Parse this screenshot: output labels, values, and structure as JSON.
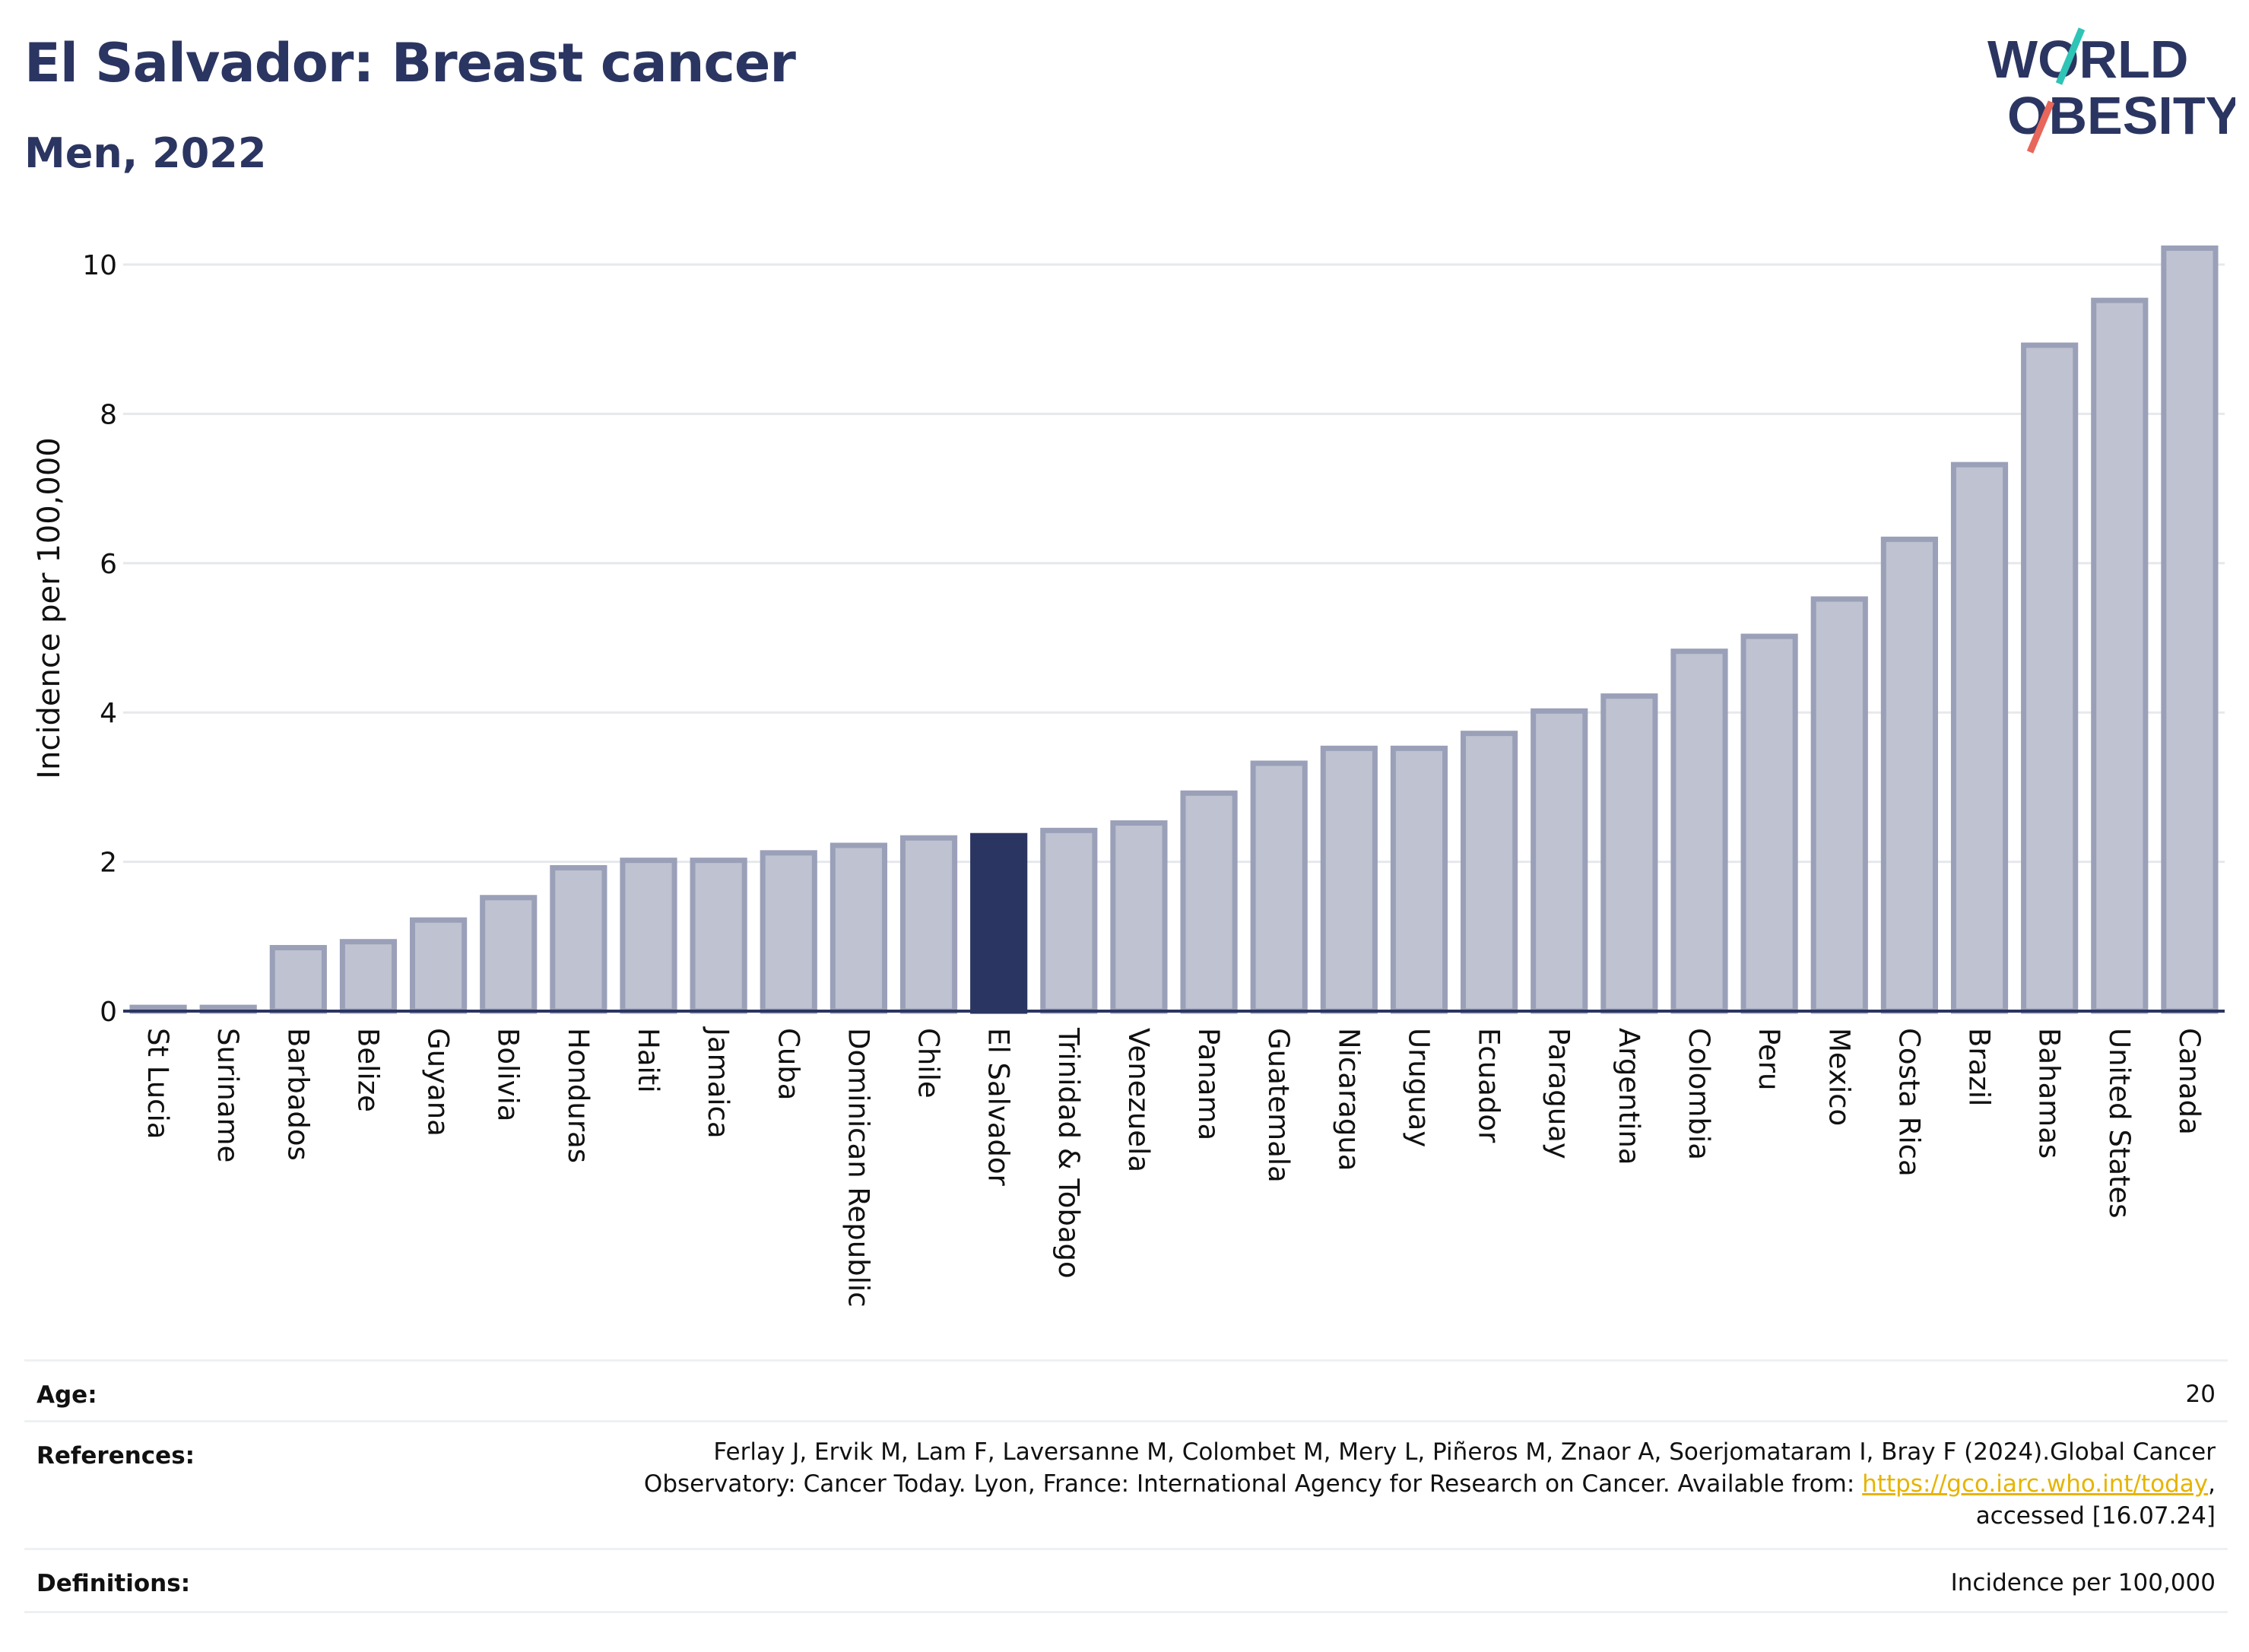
{
  "header": {
    "title": "El Salvador: Breast cancer",
    "subtitle": "Men, 2022"
  },
  "logo": {
    "line1": "WORLD",
    "line2": "OBESITY",
    "text_color": "#2b3561",
    "slash_colors": [
      "#2ec4b6",
      "#e8665a"
    ]
  },
  "chart_data": {
    "type": "bar",
    "ylabel": "Incidence per 100,000",
    "ylim": [
      0,
      10.4
    ],
    "yticks": [
      0,
      2,
      4,
      6,
      8,
      10
    ],
    "grid": true,
    "highlight": "El Salvador",
    "colors": {
      "bar": "#bfc2d0",
      "bar_edge": "#9aa0b8",
      "highlight": "#2b3561"
    },
    "categories": [
      "St Lucia",
      "Suriname",
      "Barbados",
      "Belize",
      "Guyana",
      "Bolivia",
      "Honduras",
      "Haiti",
      "Jamaica",
      "Cuba",
      "Dominican Republic",
      "Chile",
      "El Salvador",
      "Trinidad & Tobago",
      "Venezuela",
      "Panama",
      "Guatemala",
      "Nicaragua",
      "Uruguay",
      "Ecuador",
      "Paraguay",
      "Argentina",
      "Colombia",
      "Peru",
      "Mexico",
      "Costa Rica",
      "Brazil",
      "Bahamas",
      "United States",
      "Canada"
    ],
    "values": [
      0.05,
      0.05,
      0.85,
      0.93,
      1.22,
      1.52,
      1.92,
      2.02,
      2.02,
      2.12,
      2.22,
      2.32,
      2.35,
      2.42,
      2.52,
      2.92,
      3.32,
      3.52,
      3.52,
      3.72,
      4.02,
      4.22,
      4.82,
      5.02,
      5.52,
      6.32,
      7.32,
      8.92,
      9.52,
      10.22
    ]
  },
  "meta": {
    "age_label": "Age:",
    "age_value": "20",
    "references_label": "References:",
    "references_line1": "Ferlay J, Ervik M, Lam F, Laversanne M, Colombet M, Mery L, Piñeros M, Znaor A, Soerjomataram I, Bray F (2024).Global Cancer",
    "references_line2_pre": "Observatory: Cancer Today. Lyon, France: International Agency for Research on Cancer. Available from: ",
    "references_link": "https://gco.iarc.who.int/today",
    "references_line2_post": ",",
    "references_line3": "accessed [16.07.24]",
    "definitions_label": "Definitions:",
    "definitions_value": "Incidence per 100,000"
  }
}
